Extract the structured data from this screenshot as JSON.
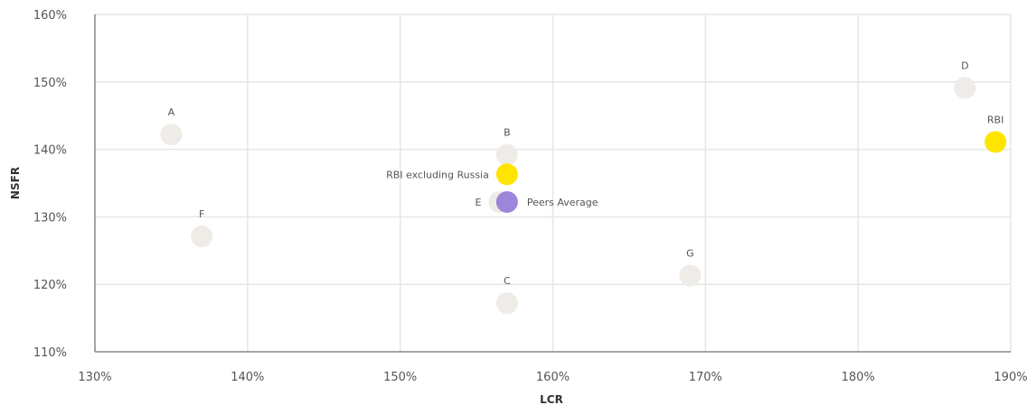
{
  "chart_data": {
    "type": "scatter",
    "title": "",
    "xlabel": "LCR",
    "ylabel": "NSFR",
    "xlim": [
      130,
      190
    ],
    "ylim": [
      110,
      160
    ],
    "x_ticks": [
      "130%",
      "140%",
      "150%",
      "160%",
      "170%",
      "180%",
      "190%"
    ],
    "x_tick_values": [
      130,
      140,
      150,
      160,
      170,
      180,
      190
    ],
    "y_ticks": [
      "110%",
      "120%",
      "130%",
      "140%",
      "150%",
      "160%"
    ],
    "y_tick_values": [
      110,
      120,
      130,
      140,
      150,
      160
    ],
    "grid": true,
    "colors": {
      "peer": "#efebe6",
      "rbi": "#ffe400",
      "average": "#9b86dc"
    },
    "points": [
      {
        "label": "A",
        "x": 135,
        "y": 142.2,
        "group": "peer",
        "label_pos": "above"
      },
      {
        "label": "B",
        "x": 157,
        "y": 139.2,
        "group": "peer",
        "label_pos": "above"
      },
      {
        "label": "C",
        "x": 157,
        "y": 117.2,
        "group": "peer",
        "label_pos": "above"
      },
      {
        "label": "D",
        "x": 187,
        "y": 149.1,
        "group": "peer",
        "label_pos": "above"
      },
      {
        "label": "E",
        "x": 156.5,
        "y": 132.2,
        "group": "peer",
        "label_pos": "left"
      },
      {
        "label": "F",
        "x": 137,
        "y": 127.1,
        "group": "peer",
        "label_pos": "above"
      },
      {
        "label": "G",
        "x": 169,
        "y": 121.3,
        "group": "peer",
        "label_pos": "above"
      },
      {
        "label": "RBI",
        "x": 189,
        "y": 141.1,
        "group": "rbi",
        "label_pos": "above"
      },
      {
        "label": "RBI excluding Russia",
        "x": 157,
        "y": 136.3,
        "group": "rbi",
        "label_pos": "left"
      },
      {
        "label": "Peers Average",
        "x": 157,
        "y": 132.2,
        "group": "average",
        "label_pos": "right"
      }
    ]
  }
}
